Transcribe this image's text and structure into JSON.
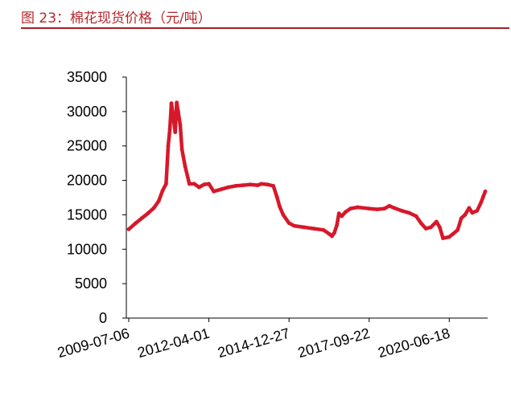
{
  "figure": {
    "title": "图 23：棉花现货价格（元/吨）"
  },
  "chart_data": {
    "type": "line",
    "title": "棉花现货价格（元/吨）",
    "xlabel": "",
    "ylabel": "",
    "ylim": [
      0,
      35000
    ],
    "grid": false,
    "legend": "none",
    "y_ticks": [
      "0",
      "5000",
      "10000",
      "15000",
      "20000",
      "25000",
      "30000",
      "35000"
    ],
    "x_ticks": [
      "2009-07-06",
      "2012-04-01",
      "2014-12-27",
      "2017-09-22",
      "2020-06-18"
    ],
    "series": [
      {
        "color": "#d7182a",
        "points": [
          [
            "2009-07-06",
            12900
          ],
          [
            "2009-10-01",
            13800
          ],
          [
            "2009-12-15",
            14500
          ],
          [
            "2010-03-01",
            15200
          ],
          [
            "2010-05-15",
            16000
          ],
          [
            "2010-07-15",
            17000
          ],
          [
            "2010-09-01",
            18500
          ],
          [
            "2010-10-15",
            19500
          ],
          [
            "2010-11-10",
            25000
          ],
          [
            "2010-12-01",
            27500
          ],
          [
            "2010-12-20",
            31200
          ],
          [
            "2011-01-15",
            29000
          ],
          [
            "2011-02-05",
            27000
          ],
          [
            "2011-02-25",
            31300
          ],
          [
            "2011-03-15",
            30000
          ],
          [
            "2011-04-10",
            28000
          ],
          [
            "2011-05-01",
            24500
          ],
          [
            "2011-06-10",
            22000
          ],
          [
            "2011-08-01",
            19500
          ],
          [
            "2011-10-01",
            19500
          ],
          [
            "2011-12-01",
            19000
          ],
          [
            "2012-02-01",
            19400
          ],
          [
            "2012-04-01",
            19500
          ],
          [
            "2012-06-01",
            18400
          ],
          [
            "2012-09-01",
            18700
          ],
          [
            "2012-12-01",
            19000
          ],
          [
            "2013-03-01",
            19200
          ],
          [
            "2013-06-01",
            19300
          ],
          [
            "2013-09-01",
            19400
          ],
          [
            "2013-12-01",
            19300
          ],
          [
            "2014-01-15",
            19500
          ],
          [
            "2014-04-01",
            19400
          ],
          [
            "2014-06-15",
            19200
          ],
          [
            "2014-08-01",
            17500
          ],
          [
            "2014-09-01",
            16200
          ],
          [
            "2014-10-15",
            15000
          ],
          [
            "2014-12-27",
            13800
          ],
          [
            "2015-03-01",
            13400
          ],
          [
            "2015-07-01",
            13200
          ],
          [
            "2015-11-01",
            13000
          ],
          [
            "2016-03-01",
            12800
          ],
          [
            "2016-05-15",
            12200
          ],
          [
            "2016-06-15",
            11900
          ],
          [
            "2016-07-15",
            12400
          ],
          [
            "2016-08-15",
            13500
          ],
          [
            "2016-09-10",
            15200
          ],
          [
            "2016-10-15",
            14800
          ],
          [
            "2016-12-01",
            15400
          ],
          [
            "2017-02-01",
            15900
          ],
          [
            "2017-05-01",
            16100
          ],
          [
            "2017-09-22",
            15900
          ],
          [
            "2018-01-01",
            15800
          ],
          [
            "2018-04-01",
            15900
          ],
          [
            "2018-06-01",
            16300
          ],
          [
            "2018-08-01",
            16000
          ],
          [
            "2018-11-01",
            15600
          ],
          [
            "2019-02-01",
            15300
          ],
          [
            "2019-05-01",
            14800
          ],
          [
            "2019-07-01",
            13800
          ],
          [
            "2019-09-01",
            13000
          ],
          [
            "2019-11-01",
            13200
          ],
          [
            "2020-01-10",
            14000
          ],
          [
            "2020-02-20",
            13200
          ],
          [
            "2020-04-01",
            11600
          ],
          [
            "2020-06-18",
            11800
          ],
          [
            "2020-08-01",
            12200
          ],
          [
            "2020-10-01",
            12800
          ],
          [
            "2020-11-15",
            14500
          ],
          [
            "2021-01-01",
            15000
          ],
          [
            "2021-02-20",
            16000
          ],
          [
            "2021-04-01",
            15300
          ],
          [
            "2021-06-01",
            15600
          ],
          [
            "2021-07-20",
            16800
          ],
          [
            "2021-08-15",
            17600
          ],
          [
            "2021-09-10",
            18400
          ]
        ]
      }
    ]
  }
}
